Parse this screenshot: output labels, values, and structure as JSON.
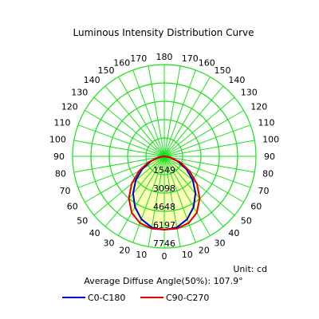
{
  "chart_data": {
    "type": "polar",
    "title": "Luminous Intensity Distribution Curve",
    "unit_text": "Unit: cd",
    "average_angle_text": "Average Diffuse Angle(50%): 107.9°",
    "angle_tick_labels": [
      "0",
      "10",
      "20",
      "30",
      "40",
      "50",
      "60",
      "70",
      "80",
      "90",
      "100",
      "110",
      "120",
      "130",
      "140",
      "150",
      "160",
      "170",
      "180"
    ],
    "ring_values": [
      1549,
      3098,
      4648,
      6197,
      7746
    ],
    "ring_labels": [
      "1549",
      "3098",
      "4648",
      "6197",
      "7746"
    ],
    "r_max": 7746,
    "grid": true,
    "legend_position": "bottom",
    "colors": {
      "grid": "#19e019",
      "fill": "#fbffb8",
      "c0_c180": "#0000cc",
      "c90_c270": "#e00000",
      "background": "#ffffff"
    },
    "angles_deg": [
      0,
      10,
      20,
      30,
      40,
      50,
      60,
      70,
      80,
      90
    ],
    "series": [
      {
        "name": "C0-C180",
        "color": "#0000cc",
        "values": [
          6200,
          6100,
          5650,
          4950,
          4100,
          3150,
          2150,
          1200,
          420,
          0
        ]
      },
      {
        "name": "C90-C270",
        "color": "#e00000",
        "values": [
          6200,
          6200,
          6000,
          5500,
          4650,
          3600,
          2450,
          1400,
          500,
          0
        ]
      }
    ]
  }
}
